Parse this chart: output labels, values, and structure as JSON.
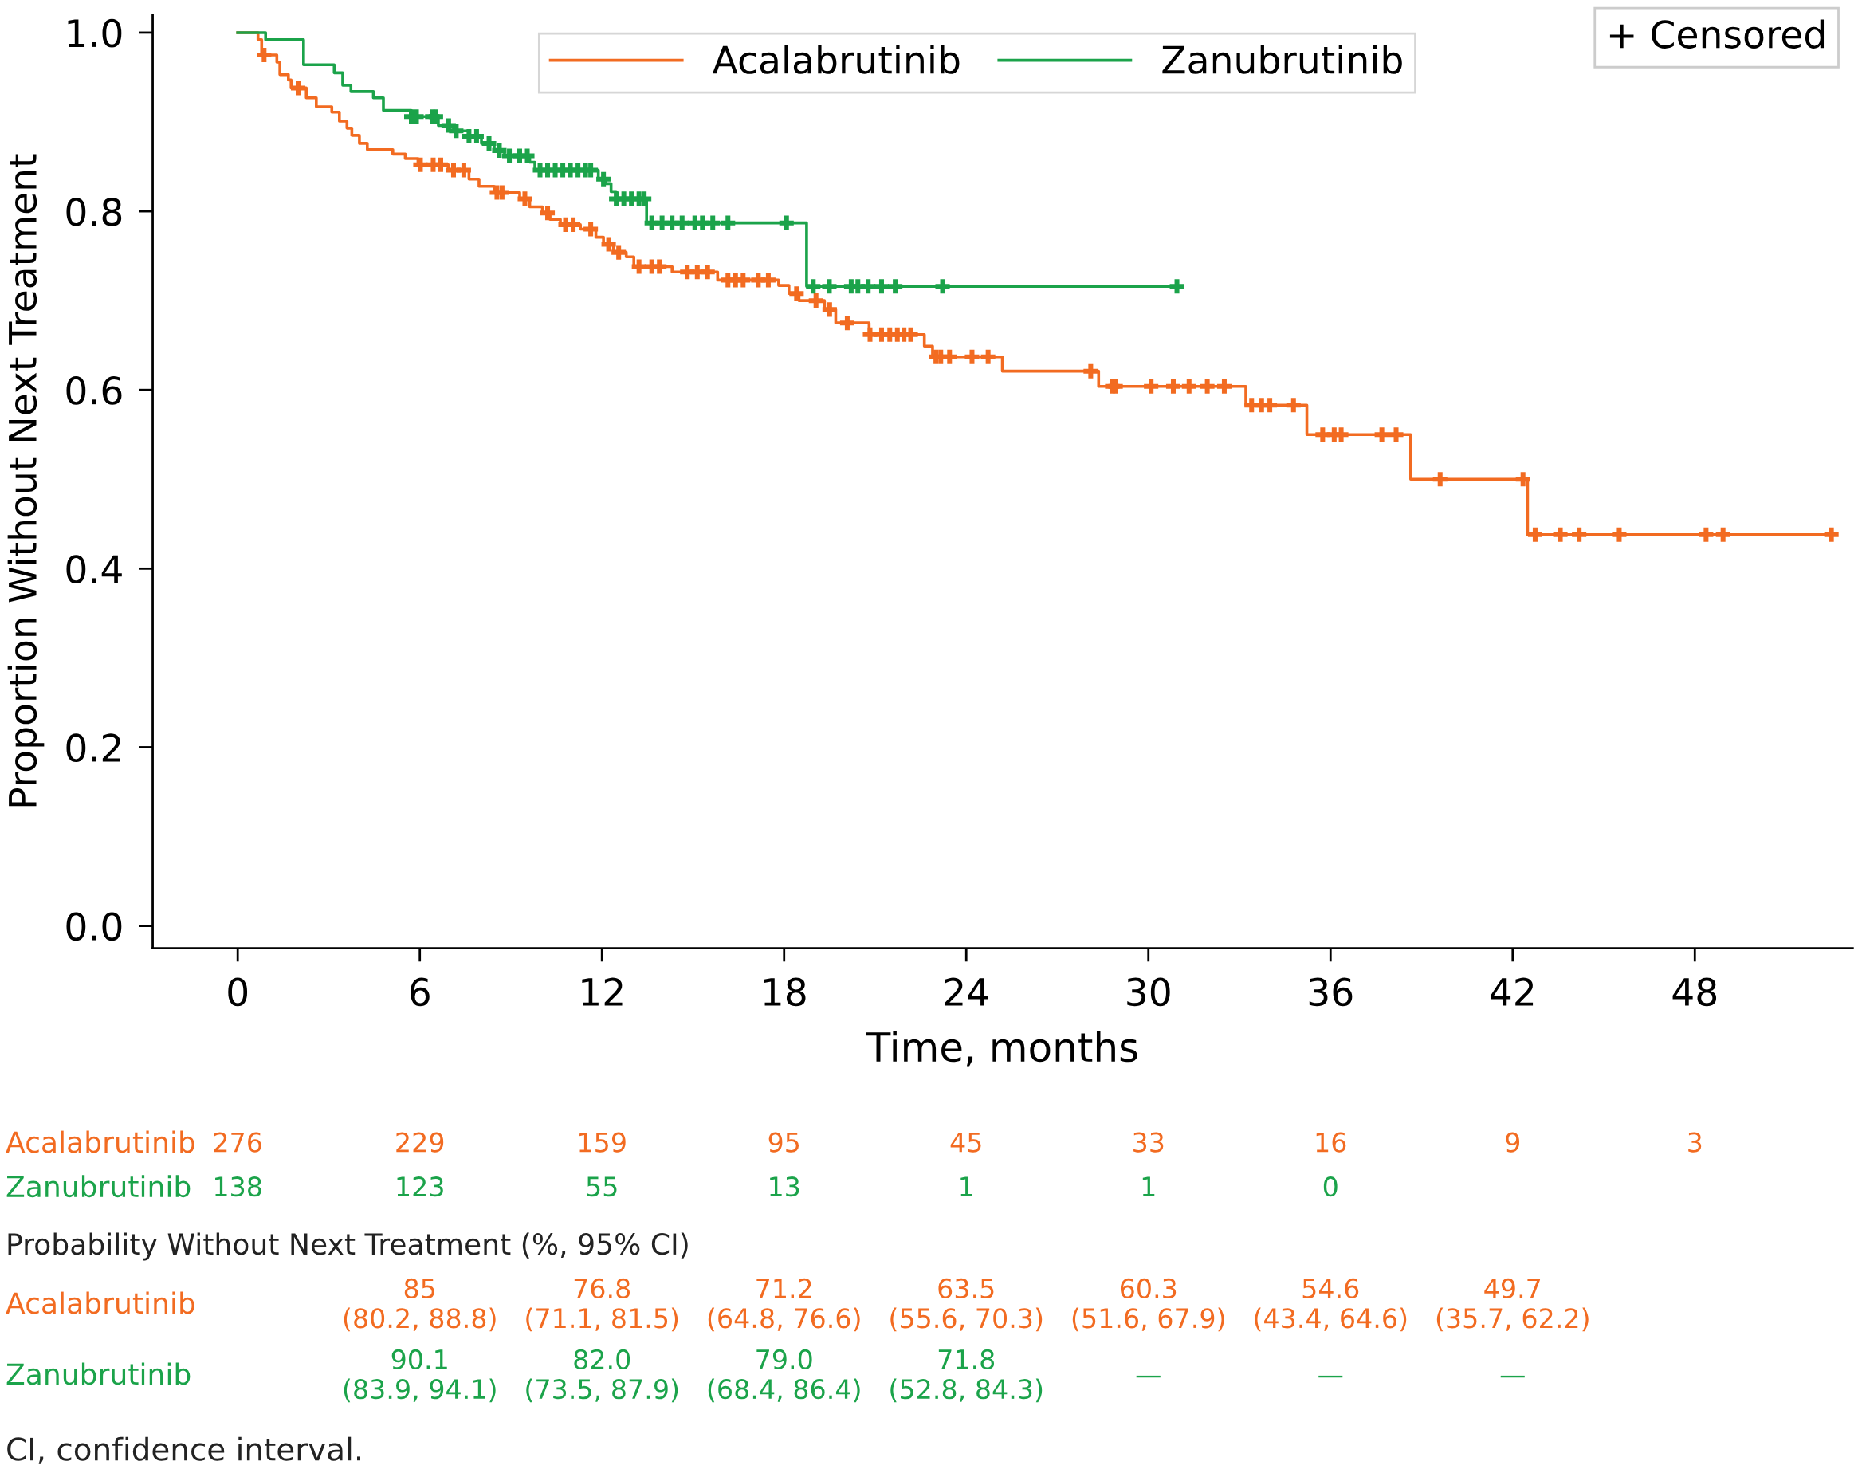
{
  "chart_data": {
    "type": "step",
    "xlabel": "Time, months",
    "ylabel": "Proportion Without Next Treatment",
    "xlim": [
      -2.8,
      53.2
    ],
    "ylim": [
      -0.025,
      1.02
    ],
    "xticks": [
      0,
      6,
      12,
      18,
      24,
      30,
      36,
      42,
      48
    ],
    "yticks": [
      {
        "value": 0,
        "label": "0.0"
      },
      {
        "value": 0.2,
        "label": "0.2"
      },
      {
        "value": 0.4,
        "label": "0.4"
      },
      {
        "value": 0.6,
        "label": "0.6"
      },
      {
        "value": 0.8,
        "label": "0.8"
      },
      {
        "value": 1,
        "label": "1.0"
      }
    ],
    "grid": false,
    "legend": "top",
    "line_style": "solid",
    "series": [
      {
        "name": "Acalabrutinib",
        "color": "#f26b21",
        "x": [
          0,
          0.67,
          0.79,
          1.29,
          1.39,
          1.67,
          1.76,
          2.26,
          2.59,
          3.1,
          3.35,
          3.6,
          3.76,
          4.01,
          4.27,
          5.11,
          5.52,
          5.94,
          6.94,
          7.62,
          7.95,
          8.45,
          9.29,
          9.62,
          10.04,
          10.29,
          10.63,
          11.29,
          11.8,
          12.05,
          12.38,
          12.8,
          13.05,
          14.31,
          15.81,
          17.82,
          18.16,
          18.49,
          19.33,
          19.7,
          20.8,
          22.62,
          22.89,
          25.19,
          28.36,
          33.21,
          35.22,
          38.64,
          42.49,
          52.62
        ],
        "values": [
          1.0,
          0.992,
          0.975,
          0.967,
          0.953,
          0.947,
          0.938,
          0.927,
          0.917,
          0.911,
          0.901,
          0.893,
          0.885,
          0.876,
          0.869,
          0.864,
          0.859,
          0.852,
          0.846,
          0.836,
          0.828,
          0.821,
          0.814,
          0.805,
          0.798,
          0.791,
          0.785,
          0.78,
          0.771,
          0.763,
          0.754,
          0.749,
          0.738,
          0.732,
          0.723,
          0.717,
          0.708,
          0.7,
          0.69,
          0.675,
          0.662,
          0.649,
          0.637,
          0.621,
          0.604,
          0.583,
          0.55,
          0.5,
          0.438,
          0.438
        ]
      },
      {
        "name": "Zanubrutinib",
        "color": "#1ba34a",
        "x": [
          0,
          0.92,
          2.17,
          3.18,
          3.46,
          3.73,
          4.47,
          4.8,
          5.72,
          6.61,
          7.11,
          7.62,
          8.03,
          8.45,
          8.79,
          9.62,
          9.79,
          11.88,
          12.13,
          12.3,
          12.47,
          13.47,
          18.74,
          30.94
        ],
        "values": [
          1.0,
          0.992,
          0.964,
          0.955,
          0.941,
          0.934,
          0.927,
          0.913,
          0.906,
          0.896,
          0.89,
          0.884,
          0.876,
          0.868,
          0.862,
          0.855,
          0.846,
          0.836,
          0.831,
          0.822,
          0.814,
          0.787,
          0.716,
          0.716
        ]
      },
      {
        "type": "scatter",
        "marker": "cross",
        "color": "#f26b21",
        "x": [
          0.87,
          1.99,
          6.02,
          6.44,
          6.69,
          7.11,
          7.45,
          8.54,
          8.71,
          9.46,
          10.21,
          10.8,
          11.05,
          11.63,
          12.22,
          12.55,
          13.22,
          13.64,
          13.89,
          14.81,
          15.14,
          15.48,
          16.15,
          16.4,
          16.65,
          17.15,
          17.48,
          18.41,
          19.05,
          19.5,
          20.08,
          20.83,
          21.21,
          21.48,
          21.73,
          21.95,
          22.17,
          23.0,
          23.16,
          23.45,
          24.19,
          24.72,
          28.1,
          28.81,
          28.92,
          30.09,
          30.82,
          31.34,
          31.94,
          32.5,
          33.4,
          33.73,
          34.0,
          34.78,
          35.74,
          36.12,
          36.35,
          37.69,
          38.16,
          39.61,
          42.34,
          42.74,
          43.57,
          44.19,
          45.51,
          48.37,
          48.93,
          52.5
        ],
        "values": [
          0.975,
          0.938,
          0.852,
          0.852,
          0.852,
          0.846,
          0.846,
          0.821,
          0.821,
          0.814,
          0.798,
          0.785,
          0.785,
          0.78,
          0.763,
          0.754,
          0.738,
          0.738,
          0.738,
          0.732,
          0.732,
          0.732,
          0.723,
          0.723,
          0.723,
          0.723,
          0.723,
          0.708,
          0.7,
          0.69,
          0.675,
          0.662,
          0.662,
          0.662,
          0.662,
          0.662,
          0.662,
          0.637,
          0.637,
          0.637,
          0.637,
          0.637,
          0.621,
          0.604,
          0.604,
          0.604,
          0.604,
          0.604,
          0.604,
          0.604,
          0.583,
          0.583,
          0.583,
          0.583,
          0.55,
          0.55,
          0.55,
          0.55,
          0.55,
          0.5,
          0.5,
          0.438,
          0.438,
          0.438,
          0.438,
          0.438,
          0.438,
          0.438
        ]
      },
      {
        "type": "scatter",
        "marker": "cross",
        "color": "#1ba34a",
        "x": [
          5.72,
          5.89,
          6.41,
          6.53,
          6.95,
          7.2,
          7.62,
          7.87,
          8.28,
          8.62,
          8.95,
          9.29,
          9.54,
          9.96,
          10.21,
          10.46,
          10.71,
          10.96,
          11.21,
          11.46,
          11.63,
          12.05,
          12.47,
          12.72,
          12.97,
          13.22,
          13.39,
          13.64,
          13.98,
          14.31,
          14.64,
          15.06,
          15.31,
          15.65,
          16.15,
          18.08,
          18.96,
          19.49,
          20.21,
          20.43,
          20.77,
          21.21,
          21.66,
          23.22,
          30.94
        ],
        "values": [
          0.906,
          0.906,
          0.906,
          0.906,
          0.896,
          0.89,
          0.884,
          0.884,
          0.876,
          0.868,
          0.862,
          0.862,
          0.862,
          0.846,
          0.846,
          0.846,
          0.846,
          0.846,
          0.846,
          0.846,
          0.846,
          0.836,
          0.814,
          0.814,
          0.814,
          0.814,
          0.814,
          0.787,
          0.787,
          0.787,
          0.787,
          0.787,
          0.787,
          0.787,
          0.787,
          0.787,
          0.716,
          0.716,
          0.716,
          0.716,
          0.716,
          0.716,
          0.716,
          0.716,
          0.716
        ]
      }
    ],
    "annotations": [
      "+ Censored",
      "276",
      "229",
      "159",
      "95",
      "45",
      "33",
      "16",
      "9",
      "3",
      "138",
      "123",
      "55",
      "13",
      "1",
      "1",
      "0",
      "Probability Without Next Treatment (%, 95% CI)",
      "85\n(80.2, 88.8)",
      "76.8\n(71.1, 81.5)",
      "71.2\n(64.8, 76.6)",
      "63.5\n(55.6, 70.3)",
      "60.3\n(51.6, 67.9)",
      "54.6\n(43.4, 64.6)",
      "49.7\n(35.7, 62.2)",
      "90.1\n(83.9, 94.1)",
      "82.0\n(73.5, 87.9)",
      "79.0\n(68.4, 86.4)",
      "71.8\n(52.8, 84.3)",
      "—",
      "—",
      "—",
      "CI, confidence interval."
    ]
  }
}
